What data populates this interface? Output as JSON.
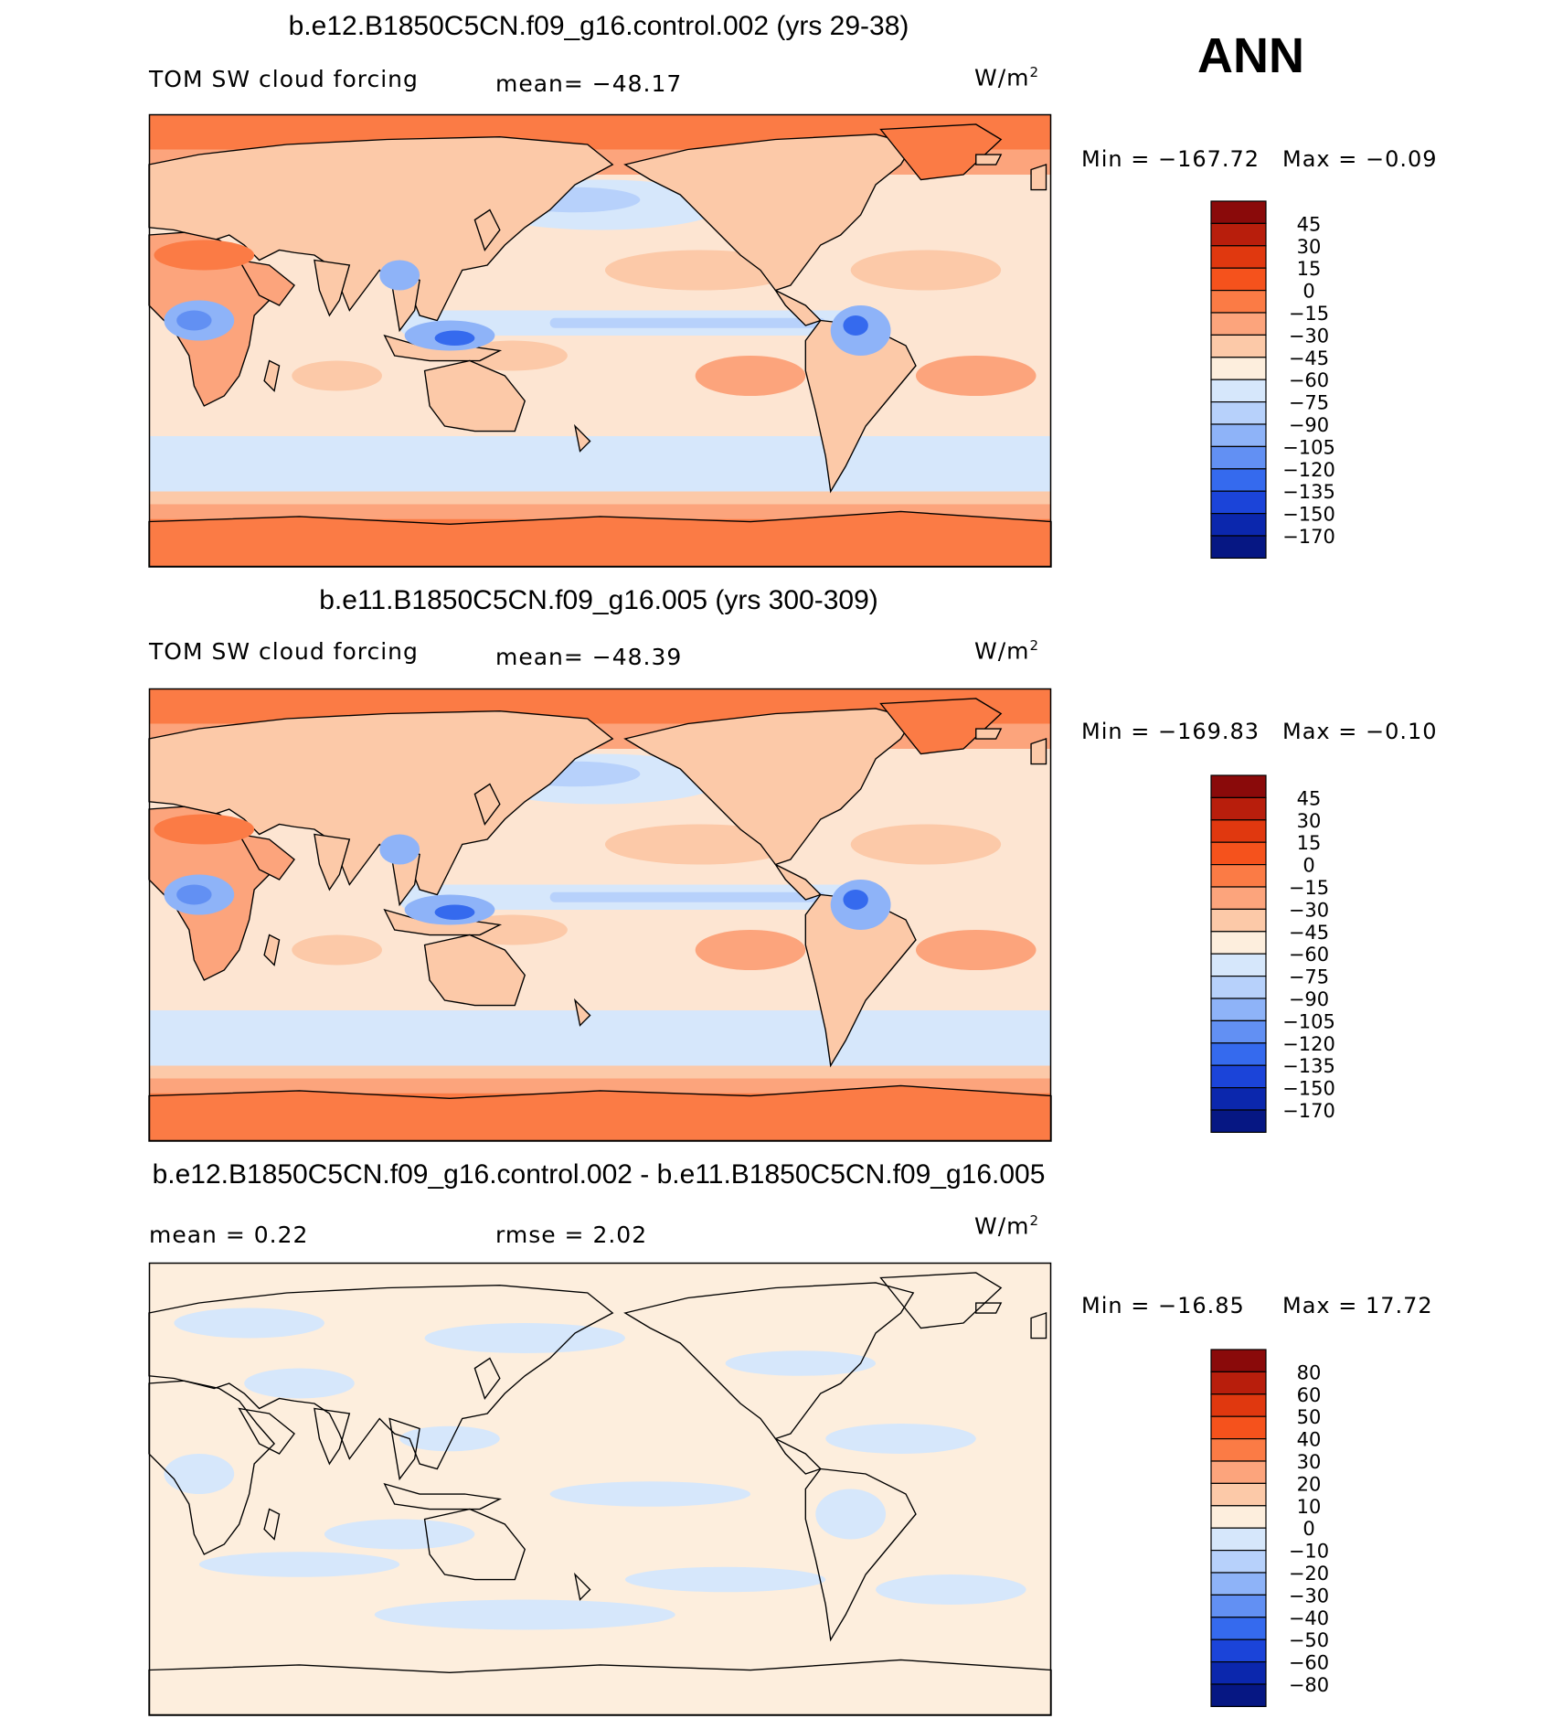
{
  "season_label": "ANN",
  "colors": {
    "land": "#fbe0cc",
    "ocean_base": "#fde5d2",
    "coast": "#000000"
  },
  "panels": [
    {
      "title": "b.e12.B1850C5CN.f09_g16.control.002 (yrs 29-38)",
      "left_label": "TOM SW cloud forcing",
      "mid_label": "mean= −48.17",
      "units_label": "W/m",
      "units_sup": "2",
      "min_text": "Min  =  −167.72",
      "max_text": "Max  =   −0.09",
      "colorbar_labels": [
        "45",
        "30",
        "15",
        "0",
        "−15",
        "−30",
        "−45",
        "−60",
        "−75",
        "−90",
        "−105",
        "−120",
        "−135",
        "−150",
        "−170"
      ],
      "colorbar_colors": [
        "#8a0a0a",
        "#b81e0c",
        "#e0380f",
        "#f5521c",
        "#fb7b45",
        "#fca47c",
        "#fcc9a8",
        "#fdeedd",
        "#d6e7fb",
        "#b7d1fb",
        "#8eb3f8",
        "#6290f3",
        "#356aee",
        "#1b44d9",
        "#0b27ad",
        "#061783"
      ],
      "map_variant": "field"
    },
    {
      "title": "b.e11.B1850C5CN.f09_g16.005 (yrs 300-309)",
      "left_label": "TOM SW cloud forcing",
      "mid_label": "mean= −48.39",
      "units_label": "W/m",
      "units_sup": "2",
      "min_text": "Min  =  −169.83",
      "max_text": "Max  =   −0.10",
      "colorbar_labels": [
        "45",
        "30",
        "15",
        "0",
        "−15",
        "−30",
        "−45",
        "−60",
        "−75",
        "−90",
        "−105",
        "−120",
        "−135",
        "−150",
        "−170"
      ],
      "colorbar_colors": [
        "#8a0a0a",
        "#b81e0c",
        "#e0380f",
        "#f5521c",
        "#fb7b45",
        "#fca47c",
        "#fcc9a8",
        "#fdeedd",
        "#d6e7fb",
        "#b7d1fb",
        "#8eb3f8",
        "#6290f3",
        "#356aee",
        "#1b44d9",
        "#0b27ad",
        "#061783"
      ],
      "map_variant": "field"
    },
    {
      "title": "b.e12.B1850C5CN.f09_g16.control.002 - b.e11.B1850C5CN.f09_g16.005",
      "left_label": "mean =    0.22",
      "mid_label": "rmse =    2.02",
      "units_label": "W/m",
      "units_sup": "2",
      "min_text": "Min  =  −16.85",
      "max_text": "Max  =   17.72",
      "colorbar_labels": [
        "80",
        "60",
        "50",
        "40",
        "30",
        "20",
        "10",
        "0",
        "−10",
        "−20",
        "−30",
        "−40",
        "−50",
        "−60",
        "−80"
      ],
      "colorbar_colors": [
        "#8a0a0a",
        "#b81e0c",
        "#e0380f",
        "#f5521c",
        "#fb7b45",
        "#fca47c",
        "#fcc9a8",
        "#fdeedd",
        "#d6e7fb",
        "#b7d1fb",
        "#8eb3f8",
        "#6290f3",
        "#356aee",
        "#1b44d9",
        "#0b27ad",
        "#061783"
      ],
      "map_variant": "diff"
    }
  ],
  "chart_data": [
    {
      "type": "heatmap",
      "title": "b.e12.B1850C5CN.f09_g16.control.002 (yrs 29-38)",
      "variable": "TOM SW cloud forcing",
      "units": "W/m2",
      "mean": -48.17,
      "min": -167.72,
      "max": -0.09,
      "levels": [
        45,
        30,
        15,
        0,
        -15,
        -30,
        -45,
        -60,
        -75,
        -90,
        -105,
        -120,
        -135,
        -150,
        -170
      ]
    },
    {
      "type": "heatmap",
      "title": "b.e11.B1850C5CN.f09_g16.005 (yrs 300-309)",
      "variable": "TOM SW cloud forcing",
      "units": "W/m2",
      "mean": -48.39,
      "min": -169.83,
      "max": -0.1,
      "levels": [
        45,
        30,
        15,
        0,
        -15,
        -30,
        -45,
        -60,
        -75,
        -90,
        -105,
        -120,
        -135,
        -150,
        -170
      ]
    },
    {
      "type": "heatmap",
      "title": "b.e12.B1850C5CN.f09_g16.control.002 - b.e11.B1850C5CN.f09_g16.005",
      "units": "W/m2",
      "mean": 0.22,
      "rmse": 2.02,
      "min": -16.85,
      "max": 17.72,
      "levels": [
        80,
        60,
        50,
        40,
        30,
        20,
        10,
        0,
        -10,
        -20,
        -30,
        -40,
        -50,
        -60,
        -80
      ]
    }
  ]
}
